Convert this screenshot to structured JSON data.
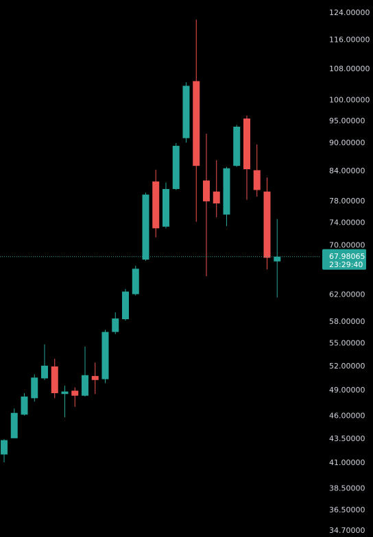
{
  "chart_data": {
    "type": "candlestick",
    "title": "",
    "xlabel": "",
    "ylabel": "",
    "scale": "log",
    "ylim": [
      34.7,
      124.0
    ],
    "grid": false,
    "colors": {
      "background": "#000000",
      "up": "#26a69a",
      "down": "#ef5350",
      "axis_text": "#cfd3dc",
      "last_price_badge": "#26a69a",
      "last_price_line": "#26a69a"
    },
    "y_ticks": [
      "124.00000",
      "116.00000",
      "108.00000",
      "100.00000",
      "95.00000",
      "90.00000",
      "84.00000",
      "78.00000",
      "74.00000",
      "70.00000",
      "62.00000",
      "58.00000",
      "55.00000",
      "52.00000",
      "49.00000",
      "46.00000",
      "43.50000",
      "41.00000",
      "38.50000",
      "36.50000",
      "34.70000"
    ],
    "y_tick_values": [
      124,
      116,
      108,
      100,
      95,
      90,
      84,
      78,
      74,
      70,
      62,
      58,
      55,
      52,
      49,
      46,
      43.5,
      41,
      38.5,
      36.5,
      34.7
    ],
    "last_price": {
      "value": 67.98065,
      "label": "67.98065",
      "countdown": "23:29:40"
    },
    "candles": [
      {
        "open": 41.8,
        "high": 43.4,
        "low": 41.0,
        "close": 43.3
      },
      {
        "open": 43.5,
        "high": 46.8,
        "low": 43.5,
        "close": 46.3
      },
      {
        "open": 46.1,
        "high": 48.6,
        "low": 46.0,
        "close": 48.2
      },
      {
        "open": 48.0,
        "high": 50.9,
        "low": 47.6,
        "close": 50.5
      },
      {
        "open": 50.4,
        "high": 54.8,
        "low": 50.2,
        "close": 52.0
      },
      {
        "open": 51.9,
        "high": 52.9,
        "low": 48.0,
        "close": 48.6
      },
      {
        "open": 48.5,
        "high": 49.5,
        "low": 45.8,
        "close": 48.8
      },
      {
        "open": 48.9,
        "high": 49.3,
        "low": 47.0,
        "close": 48.3
      },
      {
        "open": 48.3,
        "high": 54.5,
        "low": 48.2,
        "close": 50.8
      },
      {
        "open": 50.7,
        "high": 52.4,
        "low": 48.5,
        "close": 50.2
      },
      {
        "open": 50.3,
        "high": 56.8,
        "low": 49.8,
        "close": 56.5
      },
      {
        "open": 56.5,
        "high": 59.3,
        "low": 56.2,
        "close": 58.4
      },
      {
        "open": 58.3,
        "high": 62.8,
        "low": 58.1,
        "close": 62.4
      },
      {
        "open": 62.0,
        "high": 66.5,
        "low": 61.8,
        "close": 66.0
      },
      {
        "open": 67.5,
        "high": 79.6,
        "low": 67.3,
        "close": 79.2
      },
      {
        "open": 81.8,
        "high": 84.2,
        "low": 71.3,
        "close": 72.9
      },
      {
        "open": 73.2,
        "high": 81.6,
        "low": 72.9,
        "close": 80.3
      },
      {
        "open": 80.3,
        "high": 89.9,
        "low": 80.1,
        "close": 89.3
      },
      {
        "open": 91.0,
        "high": 104.4,
        "low": 90.0,
        "close": 103.5
      },
      {
        "open": 104.7,
        "high": 121.8,
        "low": 74.1,
        "close": 85.0
      },
      {
        "open": 82.0,
        "high": 92.0,
        "low": 64.8,
        "close": 77.9
      },
      {
        "open": 79.8,
        "high": 86.2,
        "low": 74.9,
        "close": 77.5
      },
      {
        "open": 75.4,
        "high": 84.8,
        "low": 73.3,
        "close": 84.5
      },
      {
        "open": 85.0,
        "high": 94.0,
        "low": 84.8,
        "close": 93.6
      },
      {
        "open": 95.5,
        "high": 96.2,
        "low": 78.2,
        "close": 84.3
      },
      {
        "open": 84.1,
        "high": 89.6,
        "low": 78.8,
        "close": 80.1
      },
      {
        "open": 79.8,
        "high": 82.6,
        "low": 65.9,
        "close": 67.8
      },
      {
        "open": 67.2,
        "high": 74.6,
        "low": 61.5,
        "close": 67.98065
      }
    ]
  }
}
